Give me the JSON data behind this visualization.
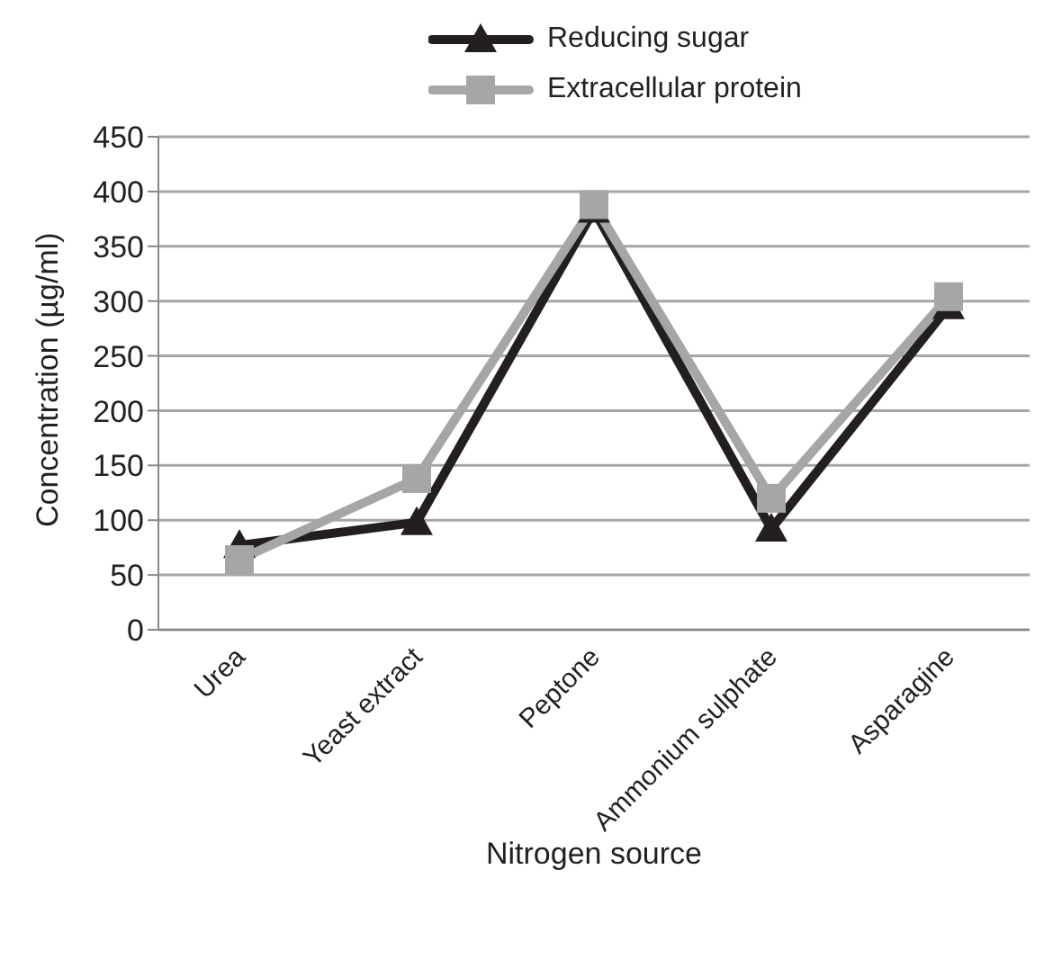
{
  "chart_data": {
    "type": "line",
    "xlabel": "Nitrogen source",
    "ylabel": "Concentration (µg/ml)",
    "categories": [
      "Urea",
      "Yeast extract",
      "Peptone",
      "Ammonium sulphate",
      "Asparagine"
    ],
    "series": [
      {
        "name": "Reducing sugar",
        "color": "#231f20",
        "marker": "triangle",
        "values": [
          77,
          98,
          383,
          92,
          295
        ]
      },
      {
        "name": "Extracellular protein",
        "color": "#a6a6a6",
        "marker": "square",
        "values": [
          64,
          138,
          388,
          120,
          304
        ]
      }
    ],
    "ylim": [
      0,
      450
    ],
    "yticks": [
      0,
      50,
      100,
      150,
      200,
      250,
      300,
      350,
      400,
      450
    ],
    "grid": "y",
    "legend": "top"
  }
}
